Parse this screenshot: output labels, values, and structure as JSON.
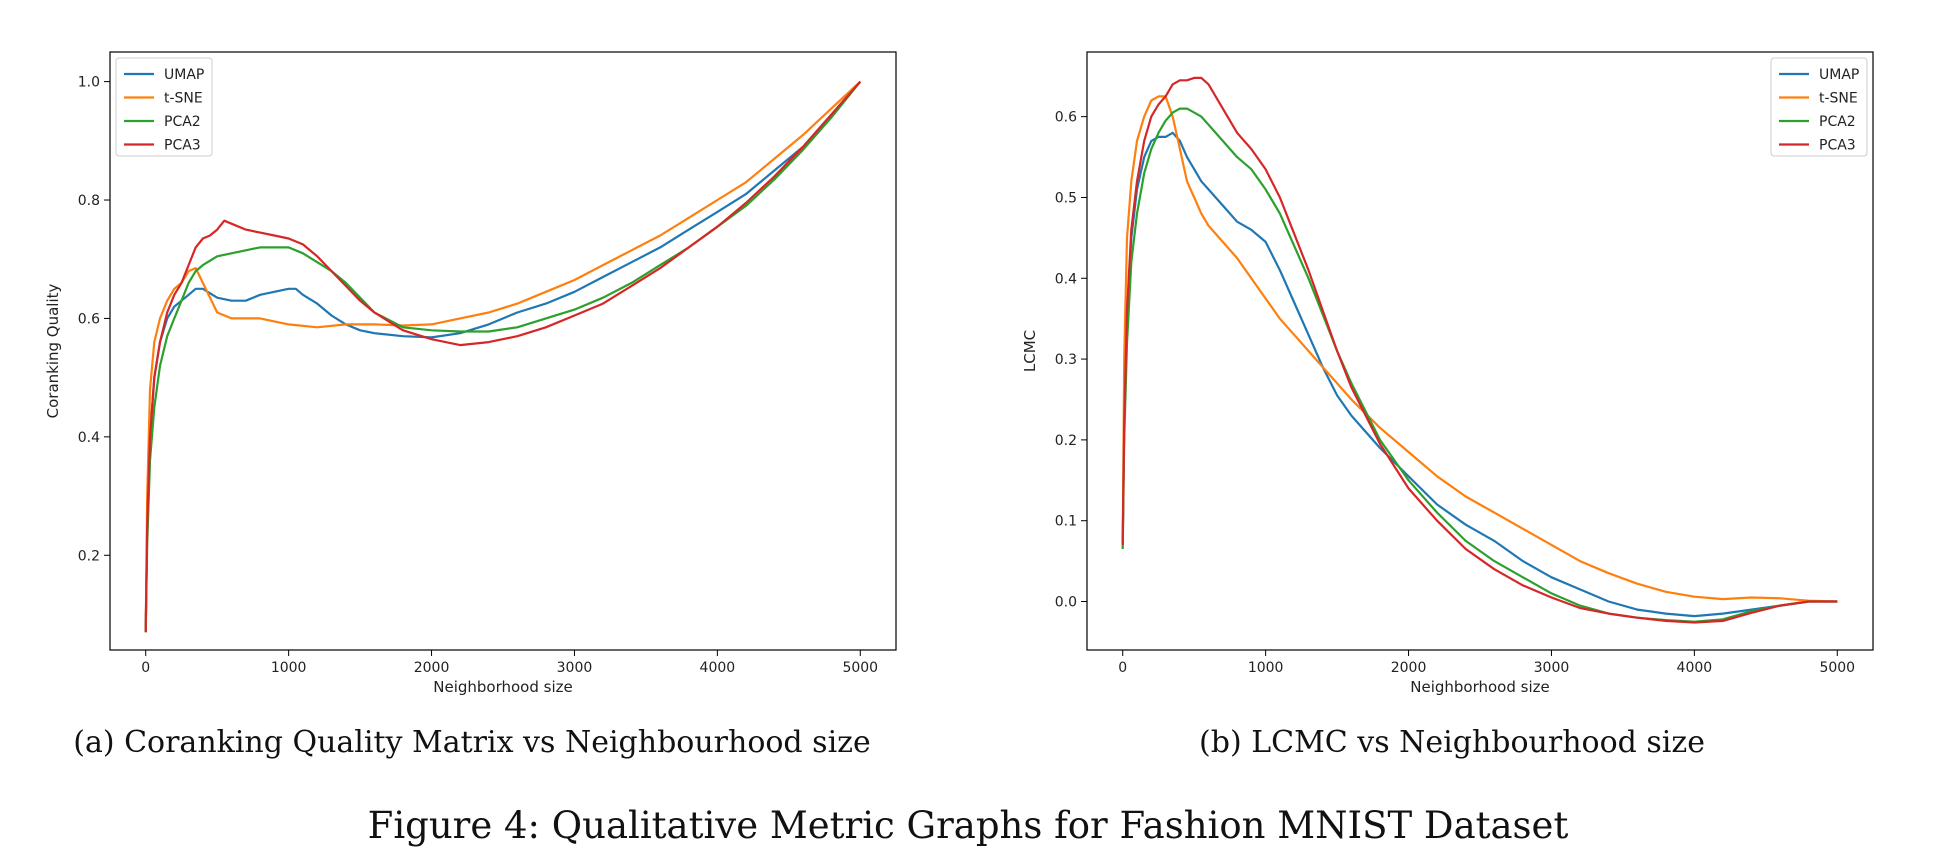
{
  "figure_caption": "Figure 4: Qualitative Metric Graphs for Fashion MNIST Dataset",
  "colors": {
    "UMAP": "#1f77b4",
    "t-SNE": "#ff7f0e",
    "PCA2": "#2ca02c",
    "PCA3": "#d62728"
  },
  "chart_data": [
    {
      "type": "line",
      "caption": "(a) Coranking Quality Matrix vs Neighbourhood size",
      "xlabel": "Neighborhood size",
      "ylabel": "Coranking Quality",
      "xlim": [
        -250,
        5250
      ],
      "ylim": [
        0.04,
        1.05
      ],
      "xticks": [
        0,
        1000,
        2000,
        3000,
        4000,
        5000
      ],
      "yticks": [
        0.2,
        0.4,
        0.6,
        0.8,
        1.0
      ],
      "ytick_labels": [
        "0.2",
        "0.4",
        "0.6",
        "0.8",
        "1.0"
      ],
      "grid": false,
      "legend": "top-left",
      "series": [
        {
          "name": "UMAP",
          "x": [
            0,
            10,
            30,
            60,
            100,
            150,
            200,
            250,
            300,
            350,
            400,
            500,
            600,
            700,
            800,
            900,
            1000,
            1050,
            1100,
            1200,
            1300,
            1400,
            1500,
            1600,
            1800,
            2000,
            2200,
            2400,
            2600,
            2800,
            3000,
            3200,
            3400,
            3600,
            3800,
            4000,
            4200,
            4400,
            4600,
            4800,
            5000
          ],
          "y": [
            0.07,
            0.25,
            0.4,
            0.5,
            0.56,
            0.6,
            0.62,
            0.63,
            0.64,
            0.65,
            0.65,
            0.635,
            0.63,
            0.63,
            0.64,
            0.645,
            0.65,
            0.65,
            0.64,
            0.625,
            0.605,
            0.59,
            0.58,
            0.575,
            0.57,
            0.568,
            0.575,
            0.59,
            0.61,
            0.625,
            0.645,
            0.67,
            0.695,
            0.72,
            0.75,
            0.78,
            0.81,
            0.85,
            0.89,
            0.945,
            1.0
          ]
        },
        {
          "name": "t-SNE",
          "x": [
            0,
            10,
            30,
            60,
            100,
            150,
            200,
            250,
            300,
            350,
            400,
            500,
            600,
            700,
            800,
            900,
            1000,
            1200,
            1400,
            1600,
            1800,
            2000,
            2200,
            2400,
            2600,
            2800,
            3000,
            3200,
            3400,
            3600,
            3800,
            4000,
            4200,
            4400,
            4600,
            4800,
            5000
          ],
          "y": [
            0.07,
            0.3,
            0.48,
            0.56,
            0.6,
            0.63,
            0.65,
            0.66,
            0.68,
            0.685,
            0.66,
            0.61,
            0.6,
            0.6,
            0.6,
            0.595,
            0.59,
            0.585,
            0.59,
            0.59,
            0.588,
            0.59,
            0.6,
            0.61,
            0.625,
            0.645,
            0.665,
            0.69,
            0.715,
            0.74,
            0.77,
            0.8,
            0.83,
            0.87,
            0.91,
            0.955,
            1.0
          ]
        },
        {
          "name": "PCA2",
          "x": [
            0,
            10,
            30,
            60,
            100,
            150,
            200,
            250,
            300,
            350,
            400,
            500,
            600,
            700,
            800,
            900,
            1000,
            1100,
            1200,
            1300,
            1400,
            1500,
            1600,
            1800,
            2000,
            2200,
            2400,
            2600,
            2800,
            3000,
            3200,
            3400,
            3600,
            3800,
            4000,
            4200,
            4400,
            4600,
            4800,
            5000
          ],
          "y": [
            0.07,
            0.22,
            0.36,
            0.45,
            0.52,
            0.57,
            0.6,
            0.63,
            0.66,
            0.68,
            0.69,
            0.705,
            0.71,
            0.715,
            0.72,
            0.72,
            0.72,
            0.71,
            0.695,
            0.68,
            0.66,
            0.635,
            0.61,
            0.585,
            0.58,
            0.578,
            0.578,
            0.585,
            0.6,
            0.615,
            0.635,
            0.66,
            0.69,
            0.72,
            0.755,
            0.79,
            0.835,
            0.885,
            0.94,
            1.0
          ]
        },
        {
          "name": "PCA3",
          "x": [
            0,
            10,
            30,
            60,
            100,
            150,
            200,
            250,
            300,
            350,
            400,
            450,
            500,
            550,
            600,
            700,
            800,
            900,
            1000,
            1100,
            1200,
            1300,
            1400,
            1500,
            1600,
            1800,
            2000,
            2200,
            2400,
            2600,
            2800,
            3000,
            3200,
            3400,
            3600,
            3800,
            4000,
            4200,
            4400,
            4600,
            4800,
            5000
          ],
          "y": [
            0.07,
            0.25,
            0.4,
            0.5,
            0.56,
            0.61,
            0.64,
            0.66,
            0.69,
            0.72,
            0.735,
            0.74,
            0.75,
            0.765,
            0.76,
            0.75,
            0.745,
            0.74,
            0.735,
            0.725,
            0.705,
            0.68,
            0.655,
            0.63,
            0.61,
            0.58,
            0.565,
            0.555,
            0.56,
            0.57,
            0.585,
            0.605,
            0.625,
            0.655,
            0.685,
            0.72,
            0.755,
            0.795,
            0.84,
            0.89,
            0.945,
            1.0
          ]
        }
      ]
    },
    {
      "type": "line",
      "caption": "(b) LCMC vs Neighbourhood size",
      "xlabel": "Neighborhood size",
      "ylabel": "LCMC",
      "xlim": [
        -250,
        5250
      ],
      "ylim": [
        -0.06,
        0.68
      ],
      "xticks": [
        0,
        1000,
        2000,
        3000,
        4000,
        5000
      ],
      "yticks": [
        0.0,
        0.1,
        0.2,
        0.3,
        0.4,
        0.5,
        0.6
      ],
      "ytick_labels": [
        "0.0",
        "0.1",
        "0.2",
        "0.3",
        "0.4",
        "0.5",
        "0.6"
      ],
      "grid": false,
      "legend": "top-right",
      "series": [
        {
          "name": "UMAP",
          "x": [
            0,
            10,
            30,
            60,
            100,
            150,
            200,
            250,
            300,
            350,
            400,
            450,
            500,
            550,
            600,
            700,
            800,
            900,
            1000,
            1100,
            1200,
            1300,
            1400,
            1500,
            1600,
            1800,
            2000,
            2200,
            2400,
            2600,
            2800,
            3000,
            3200,
            3400,
            3600,
            3800,
            4000,
            4200,
            4400,
            4600,
            4800,
            5000
          ],
          "y": [
            0.07,
            0.22,
            0.35,
            0.45,
            0.51,
            0.55,
            0.57,
            0.575,
            0.575,
            0.58,
            0.57,
            0.55,
            0.535,
            0.52,
            0.51,
            0.49,
            0.47,
            0.46,
            0.445,
            0.41,
            0.37,
            0.33,
            0.29,
            0.255,
            0.23,
            0.19,
            0.155,
            0.12,
            0.095,
            0.075,
            0.05,
            0.03,
            0.015,
            0.0,
            -0.01,
            -0.015,
            -0.018,
            -0.015,
            -0.01,
            -0.005,
            0.0,
            0.0
          ]
        },
        {
          "name": "t-SNE",
          "x": [
            0,
            10,
            30,
            60,
            100,
            150,
            200,
            250,
            300,
            350,
            400,
            450,
            500,
            550,
            600,
            700,
            800,
            900,
            1000,
            1100,
            1200,
            1300,
            1400,
            1500,
            1600,
            1800,
            2000,
            2200,
            2400,
            2600,
            2800,
            3000,
            3200,
            3400,
            3600,
            3800,
            4000,
            4200,
            4400,
            4600,
            4800,
            5000
          ],
          "y": [
            0.07,
            0.3,
            0.45,
            0.52,
            0.57,
            0.6,
            0.62,
            0.625,
            0.625,
            0.6,
            0.56,
            0.52,
            0.5,
            0.48,
            0.465,
            0.445,
            0.425,
            0.4,
            0.375,
            0.35,
            0.33,
            0.31,
            0.29,
            0.27,
            0.25,
            0.215,
            0.185,
            0.155,
            0.13,
            0.11,
            0.09,
            0.07,
            0.05,
            0.035,
            0.022,
            0.012,
            0.006,
            0.003,
            0.005,
            0.004,
            0.001,
            0.0
          ]
        },
        {
          "name": "PCA2",
          "x": [
            0,
            10,
            30,
            60,
            100,
            150,
            200,
            250,
            300,
            350,
            400,
            450,
            500,
            550,
            600,
            700,
            800,
            900,
            1000,
            1100,
            1200,
            1300,
            1400,
            1500,
            1600,
            1800,
            2000,
            2200,
            2400,
            2600,
            2800,
            3000,
            3200,
            3400,
            3600,
            3800,
            4000,
            4200,
            4400,
            4600,
            4800,
            5000
          ],
          "y": [
            0.065,
            0.2,
            0.32,
            0.42,
            0.48,
            0.53,
            0.56,
            0.58,
            0.595,
            0.605,
            0.61,
            0.61,
            0.605,
            0.6,
            0.59,
            0.57,
            0.55,
            0.535,
            0.51,
            0.48,
            0.44,
            0.4,
            0.355,
            0.31,
            0.27,
            0.2,
            0.15,
            0.11,
            0.075,
            0.05,
            0.03,
            0.01,
            -0.005,
            -0.015,
            -0.02,
            -0.023,
            -0.025,
            -0.022,
            -0.012,
            -0.005,
            0.0,
            0.0
          ]
        },
        {
          "name": "PCA3",
          "x": [
            0,
            10,
            30,
            60,
            100,
            150,
            200,
            250,
            300,
            350,
            400,
            450,
            500,
            550,
            600,
            700,
            800,
            900,
            1000,
            1100,
            1200,
            1300,
            1400,
            1500,
            1600,
            1800,
            2000,
            2200,
            2400,
            2600,
            2800,
            3000,
            3200,
            3400,
            3600,
            3800,
            4000,
            4200,
            4400,
            4600,
            4800,
            5000
          ],
          "y": [
            0.07,
            0.22,
            0.36,
            0.46,
            0.52,
            0.57,
            0.6,
            0.615,
            0.625,
            0.64,
            0.645,
            0.645,
            0.648,
            0.648,
            0.64,
            0.61,
            0.58,
            0.56,
            0.535,
            0.5,
            0.455,
            0.41,
            0.36,
            0.31,
            0.265,
            0.195,
            0.14,
            0.1,
            0.065,
            0.04,
            0.02,
            0.005,
            -0.008,
            -0.015,
            -0.02,
            -0.024,
            -0.026,
            -0.024,
            -0.014,
            -0.005,
            0.0,
            0.0
          ]
        }
      ]
    }
  ]
}
